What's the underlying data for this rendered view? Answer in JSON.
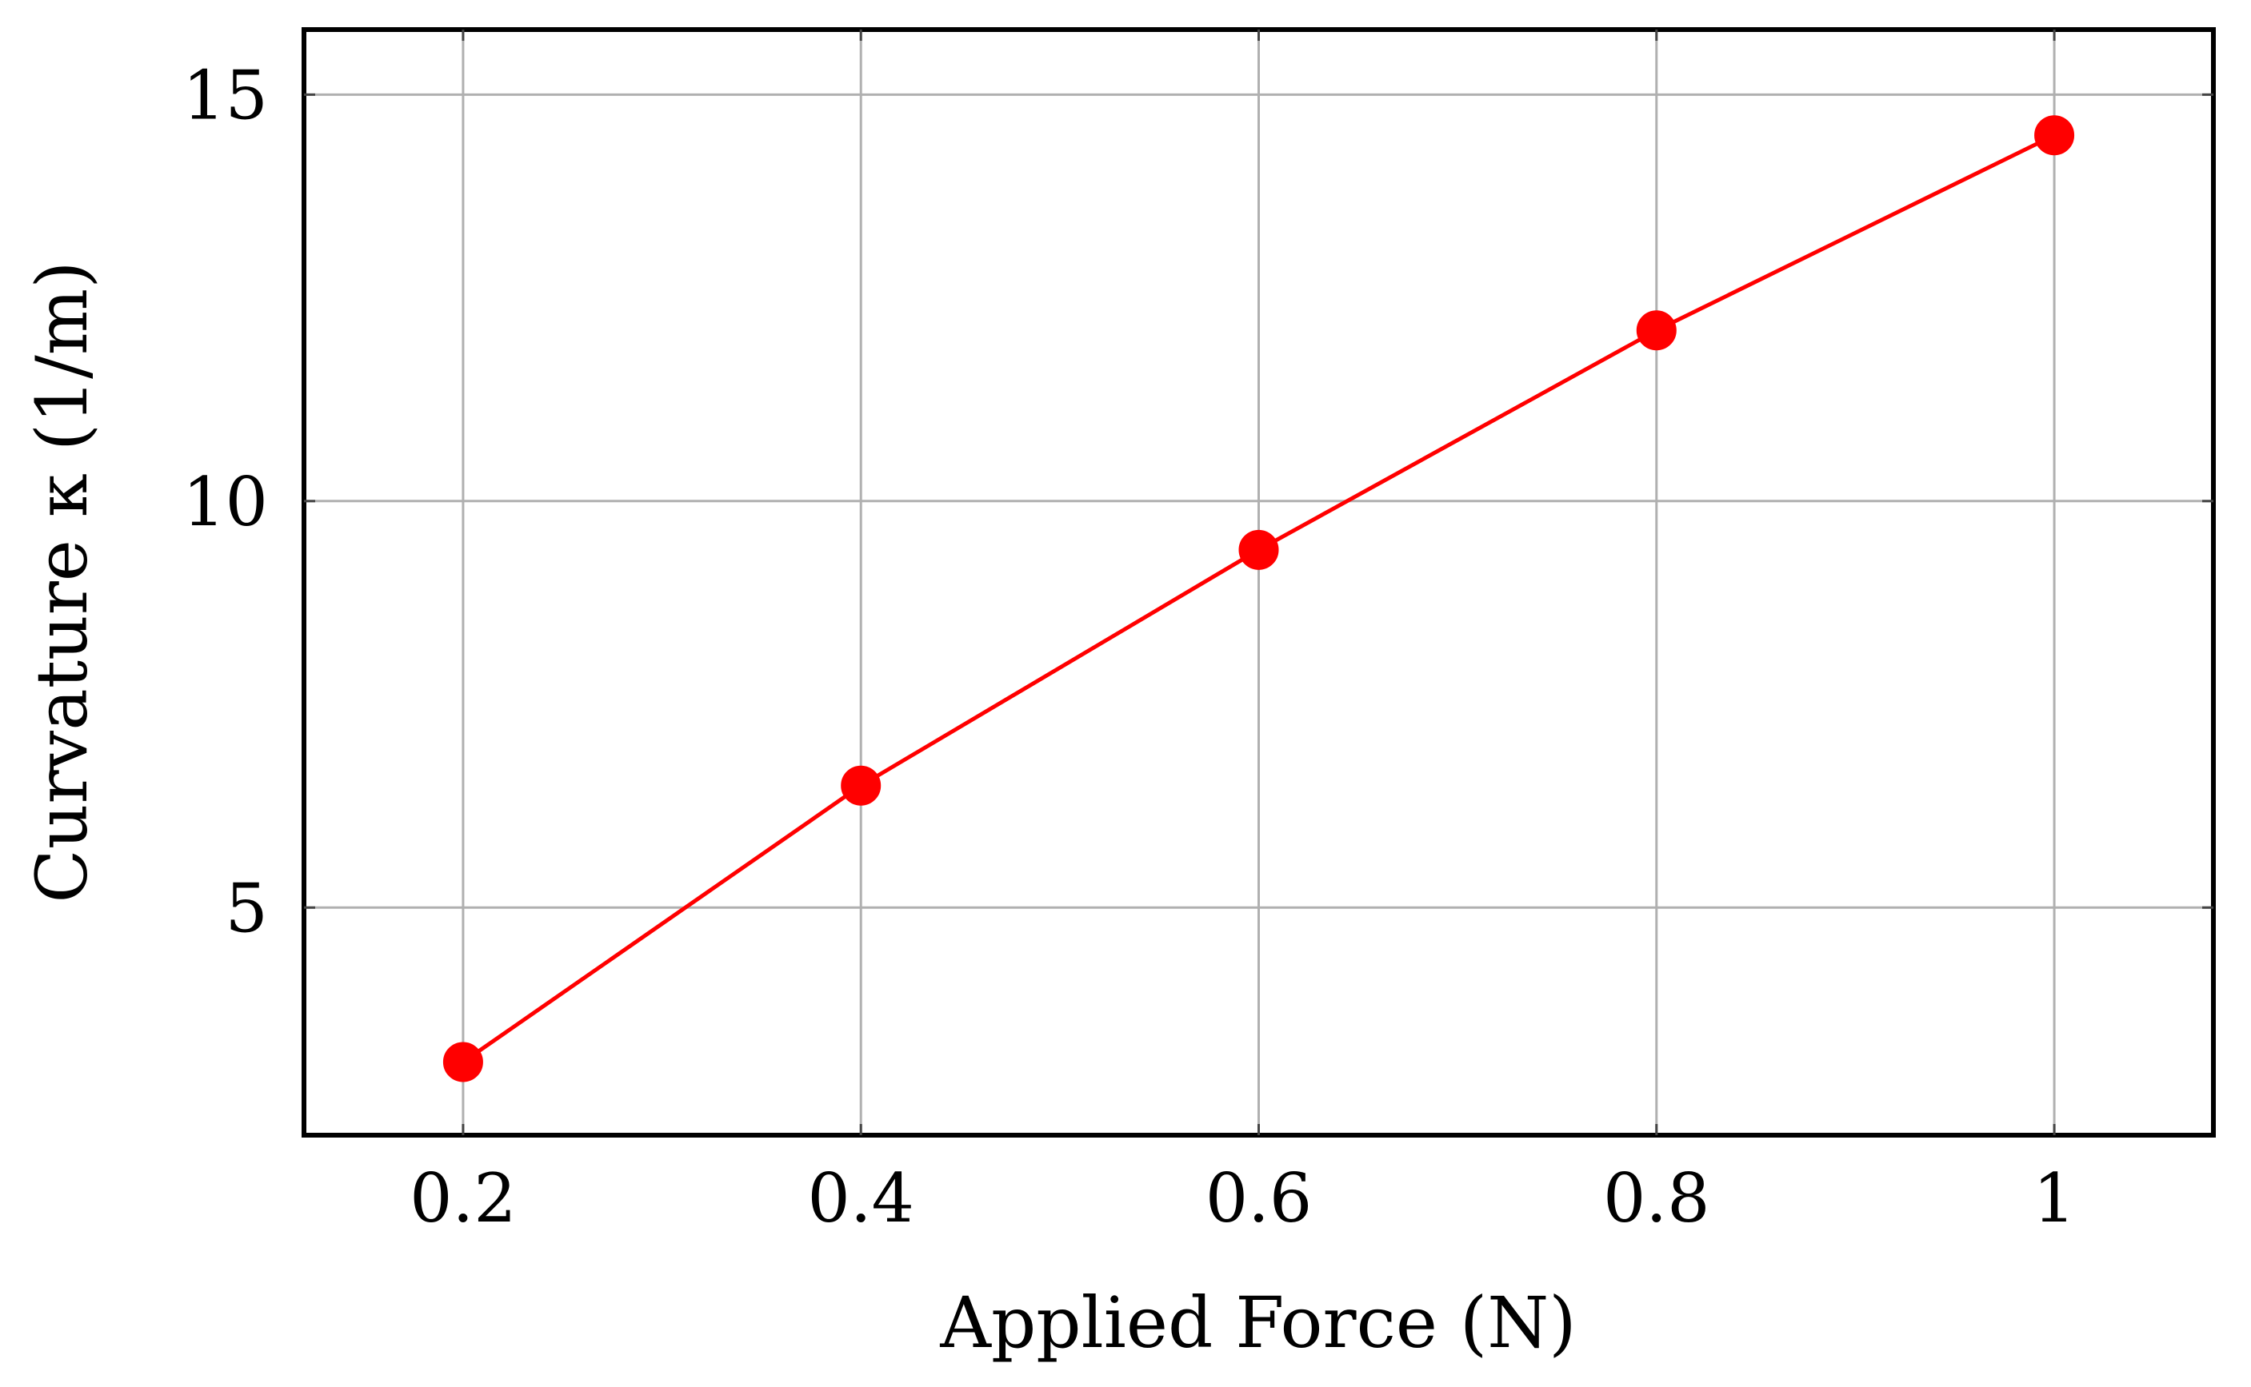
{
  "chart_data": {
    "type": "line",
    "title": "",
    "xlabel": "Applied Force (N)",
    "ylabel": "Curvature κ (1/m)",
    "x": [
      0.2,
      0.4,
      0.6,
      0.8,
      1.0
    ],
    "series": [
      {
        "values": [
          3.1,
          6.5,
          9.4,
          12.1,
          14.5
        ],
        "color": "#ff0000",
        "marker": "circle"
      }
    ],
    "xlim": [
      0.12,
      1.08
    ],
    "ylim": [
      2.2,
      15.8
    ],
    "xticks": [
      0.2,
      0.4,
      0.6,
      0.8,
      1.0
    ],
    "xtick_labels": [
      "0.2",
      "0.4",
      "0.6",
      "0.8",
      "1"
    ],
    "yticks": [
      5,
      10,
      15
    ],
    "ytick_labels": [
      "5",
      "10",
      "15"
    ],
    "grid": true,
    "grid_color": "#b0b0b0",
    "axis_color": "#000000"
  }
}
